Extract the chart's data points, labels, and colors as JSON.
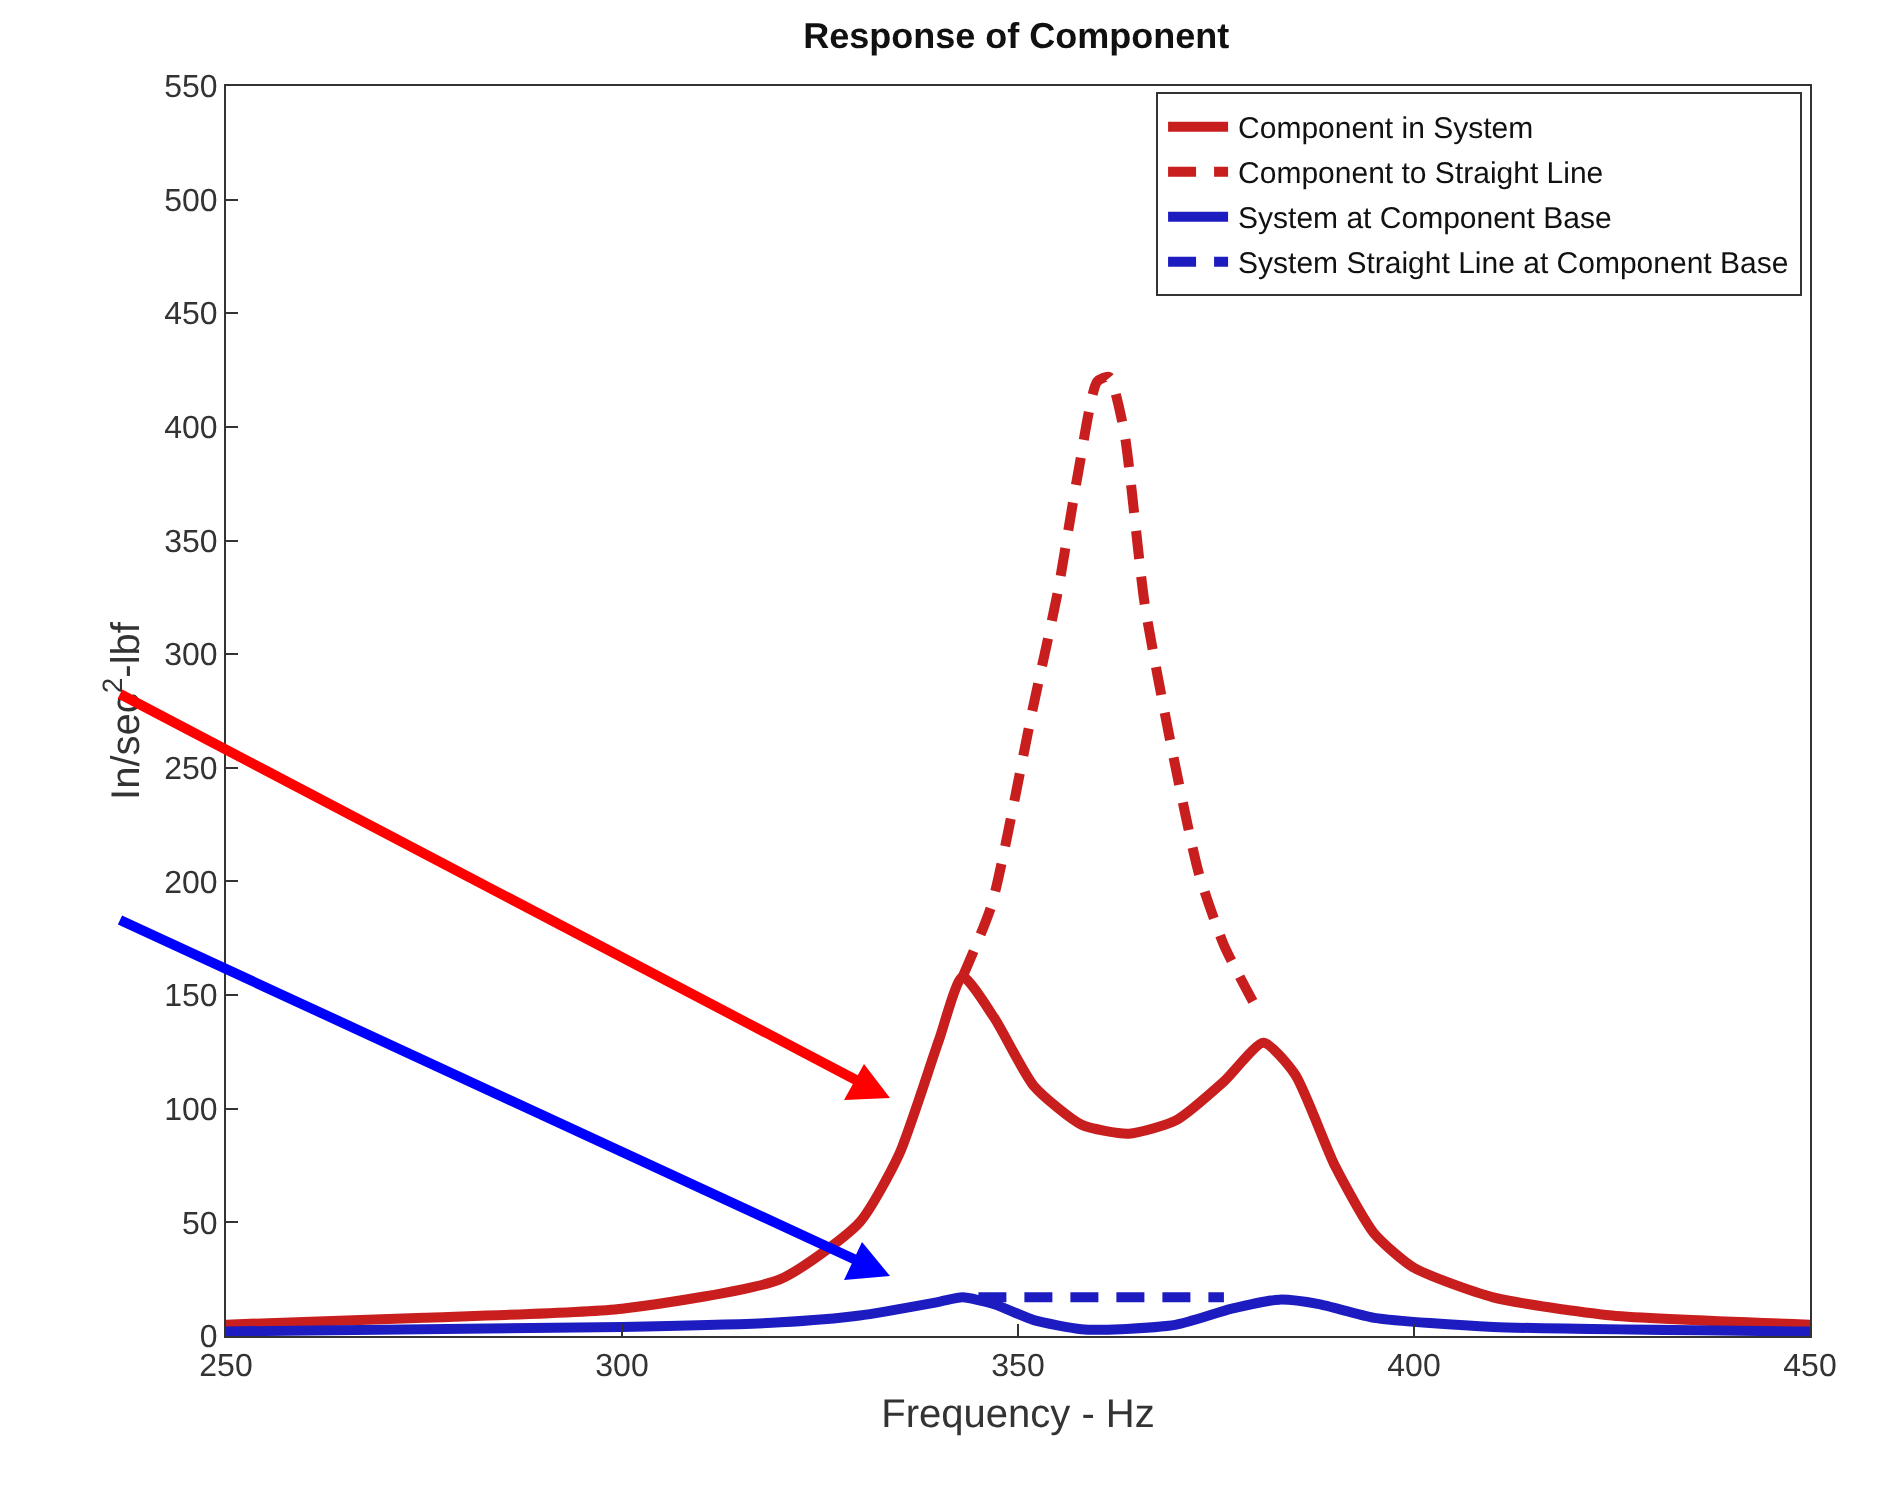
{
  "chart_data": {
    "type": "line",
    "title": "Response of Component",
    "xlabel": "Frequency - Hz",
    "ylabel": "In/sec$^{2}$-lbf",
    "xlim": [
      250,
      450
    ],
    "ylim": [
      0,
      550
    ],
    "xticks": [
      250,
      300,
      350,
      400,
      450
    ],
    "yticks": [
      0,
      50,
      100,
      150,
      200,
      250,
      300,
      350,
      400,
      450,
      500,
      550
    ],
    "grid": false,
    "legend": "top right",
    "series": [
      {
        "name": "Component in System",
        "color": "#c81e1e",
        "line_style": "solid",
        "x": [
          250,
          275,
          300,
          320,
          330,
          335,
          340,
          343,
          347,
          352,
          358,
          364,
          370,
          376,
          381,
          385,
          390,
          395,
          400,
          410,
          425,
          450
        ],
        "values": [
          5,
          8,
          12,
          25,
          50,
          80,
          130,
          158,
          140,
          110,
          93,
          89,
          95,
          112,
          129,
          115,
          75,
          45,
          30,
          17,
          9,
          5
        ]
      },
      {
        "name": "Component to Straight Line",
        "color": "#c81e1e",
        "line_style": "dashed",
        "x": [
          343,
          346.7,
          351.8,
          355,
          357.6,
          360,
          361.5,
          363.4,
          366,
          369.5,
          372.8,
          376,
          380
        ],
        "values": [
          158,
          190,
          275,
          327,
          380,
          420,
          422,
          398,
          322,
          257,
          204,
          172,
          145
        ]
      },
      {
        "name": "System at Component Base",
        "color": "#1c1cc0",
        "line_style": "solid",
        "x": [
          250,
          300,
          320,
          330,
          340,
          343,
          347,
          352,
          358,
          363,
          370,
          377,
          383,
          388,
          395,
          410,
          450
        ],
        "values": [
          2,
          4,
          6,
          9,
          15,
          17,
          14,
          7,
          3,
          3,
          5,
          12,
          16,
          14,
          8,
          4,
          2
        ]
      },
      {
        "name": "System Straight Line at Component Base",
        "color": "#1c1cc0",
        "line_style": "dashed",
        "x": [
          345,
          376
        ],
        "values": [
          17,
          17
        ]
      }
    ]
  }
}
